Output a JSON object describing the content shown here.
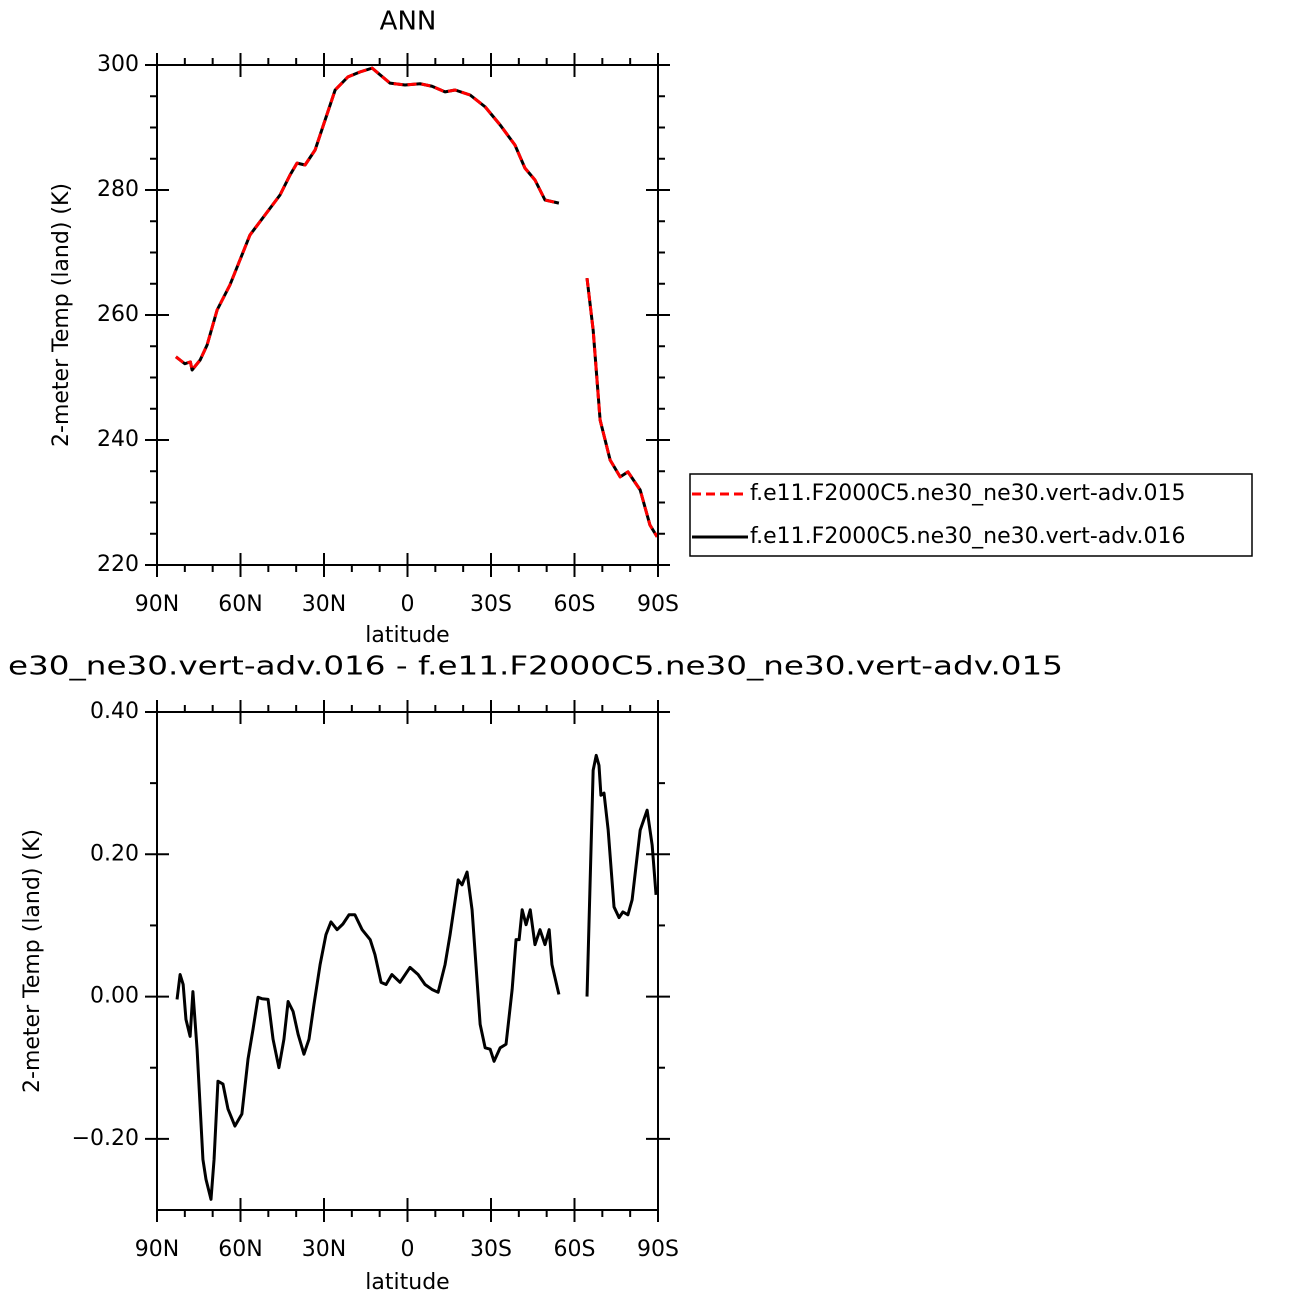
{
  "chart_data": [
    {
      "type": "line",
      "title": "ANN",
      "x_label": "latitude",
      "y_label": "2-meter Temp (land) (K)",
      "x": [
        83.2,
        80,
        78,
        77.4,
        74.5,
        72,
        68.4,
        63.8,
        60.2,
        56.6,
        51.2,
        45.8,
        42.2,
        39.7,
        36.8,
        33.2,
        29.6,
        26,
        21.4,
        17,
        12.7,
        6.3,
        0.9,
        -4.5,
        -8.8,
        -13.5,
        -17.1,
        -22.5,
        -27.9,
        -33.3,
        -38.6,
        -42.2,
        -45.8,
        -49.4,
        -54.4,
        -60,
        -64.5,
        -66.7,
        -69.2,
        -72.8,
        -76.4,
        -79.2,
        -83.6,
        -87.1,
        -89.7
      ],
      "series": [
        {
          "name": "f.e11.F2000C5.ne30_ne30.vert-adv.016",
          "color": "#000000",
          "line_style": "solid",
          "values": [
            253.3,
            252.2,
            252.5,
            251.2,
            252.8,
            255.2,
            260.8,
            264.8,
            268.8,
            272.8,
            276,
            279.2,
            282.4,
            284.3,
            284,
            286.4,
            291.2,
            296,
            298.1,
            298.9,
            299.5,
            297.1,
            296.8,
            297,
            296.6,
            295.7,
            296,
            295.2,
            293.3,
            290.4,
            287.2,
            283.5,
            281.6,
            278.4,
            277.9,
            null,
            265.9,
            257.6,
            243.2,
            236.8,
            234.1,
            234.9,
            232,
            226.4,
            224.5
          ]
        },
        {
          "name": "f.e11.F2000C5.ne30_ne30.vert-adv.015",
          "color": "#ff0000",
          "line_style": "dashed",
          "values": [
            253.3,
            252.2,
            252.5,
            251.2,
            252.8,
            255.2,
            260.8,
            264.8,
            268.8,
            272.8,
            276,
            279.2,
            282.4,
            284.3,
            284,
            286.4,
            291.2,
            296,
            298.1,
            298.9,
            299.5,
            297.1,
            296.8,
            297,
            296.6,
            295.7,
            296,
            295.2,
            293.3,
            290.4,
            287.2,
            283.5,
            281.6,
            278.4,
            277.9,
            null,
            265.9,
            257.6,
            243.2,
            236.8,
            234.1,
            234.9,
            232,
            226.4,
            224.5
          ]
        }
      ],
      "xlim": [
        90,
        -90
      ],
      "xticks": [
        {
          "value": 90,
          "label": "90N"
        },
        {
          "value": 60,
          "label": "60N"
        },
        {
          "value": 30,
          "label": "30N"
        },
        0,
        {
          "value": -30,
          "label": "30S"
        },
        {
          "value": -60,
          "label": "60S"
        },
        {
          "value": -90,
          "label": "90S"
        }
      ],
      "ylim": [
        220,
        300
      ],
      "yticks": [
        220,
        240,
        260,
        280,
        300
      ],
      "legend": "right"
    },
    {
      "type": "line",
      "title": "e30_ne30.vert-adv.016 - f.e11.F2000C5.ne30_ne30.vert-adv.015",
      "x_label": "latitude",
      "y_label": "2-meter Temp (land) (K)",
      "x": [
        82.8,
        81.7,
        80.6,
        79.6,
        78.1,
        77.1,
        75.6,
        73.5,
        72.4,
        70.6,
        69.5,
        68.1,
        66.3,
        64.5,
        62,
        59.5,
        57.3,
        55.5,
        53.7,
        52.3,
        50.1,
        48.3,
        46.2,
        44.4,
        42.9,
        41.1,
        39.3,
        37.2,
        35.4,
        33.6,
        31.4,
        29.3,
        27.5,
        25.3,
        23.2,
        21,
        18.9,
        16.3,
        13.4,
        11.7,
        9.5,
        7.7,
        5.6,
        2.7,
        -0.9,
        -3.8,
        -6.3,
        -8.8,
        -11,
        -13.5,
        -15.3,
        -18.2,
        -19.6,
        -21.4,
        -23.2,
        -26.1,
        -27.9,
        -29.7,
        -31.1,
        -33.3,
        -35.4,
        -37.6,
        -39,
        -40.1,
        -41.2,
        -42.6,
        -44.1,
        -45.8,
        -47.6,
        -49.4,
        -50.9,
        -51.9,
        -54.4,
        -60,
        -64.5,
        -66.7,
        -67.8,
        -68.8,
        -69.5,
        -70.6,
        -72.1,
        -74.2,
        -76,
        -77.4,
        -79.2,
        -80.7,
        -83.6,
        -86.1,
        -87.9,
        -89.3
      ],
      "series": [
        {
          "color": "#000000",
          "line_style": "solid",
          "values": [
            -0.004,
            0.031,
            0.017,
            -0.032,
            -0.056,
            0.007,
            -0.074,
            -0.229,
            -0.257,
            -0.285,
            -0.229,
            -0.119,
            -0.123,
            -0.158,
            -0.182,
            -0.165,
            -0.088,
            -0.046,
            -0.001,
            -0.003,
            -0.004,
            -0.06,
            -0.1,
            -0.06,
            -0.007,
            -0.021,
            -0.053,
            -0.081,
            -0.06,
            -0.011,
            0.045,
            0.087,
            0.105,
            0.094,
            0.102,
            0.115,
            0.115,
            0.094,
            0.08,
            0.059,
            0.02,
            0.017,
            0.031,
            0.02,
            0.041,
            0.031,
            0.017,
            0.01,
            0.006,
            0.045,
            0.087,
            0.164,
            0.157,
            0.175,
            0.122,
            -0.039,
            -0.072,
            -0.074,
            -0.091,
            -0.072,
            -0.067,
            0.01,
            0.08,
            0.08,
            0.122,
            0.101,
            0.122,
            0.073,
            0.094,
            0.073,
            0.094,
            0.045,
            0.003,
            null,
            0,
            0.318,
            0.339,
            0.325,
            0.283,
            0.286,
            0.234,
            0.126,
            0.111,
            0.119,
            0.115,
            0.136,
            0.234,
            0.262,
            0.213,
            0.143
          ]
        }
      ],
      "xlim": [
        90,
        -90
      ],
      "xticks": [
        {
          "value": 90,
          "label": "90N"
        },
        {
          "value": 60,
          "label": "60N"
        },
        {
          "value": 30,
          "label": "30N"
        },
        0,
        {
          "value": -30,
          "label": "30S"
        },
        {
          "value": -60,
          "label": "60S"
        },
        {
          "value": -90,
          "label": "90S"
        }
      ],
      "ylim": [
        -0.3,
        0.4
      ],
      "yticks": [
        {
          "value": -0.2,
          "label": "−0.20"
        },
        {
          "value": 0,
          "label": "0.00"
        },
        {
          "value": 0.2,
          "label": "0.20"
        },
        {
          "value": 0.4,
          "label": "0.40"
        }
      ]
    }
  ]
}
